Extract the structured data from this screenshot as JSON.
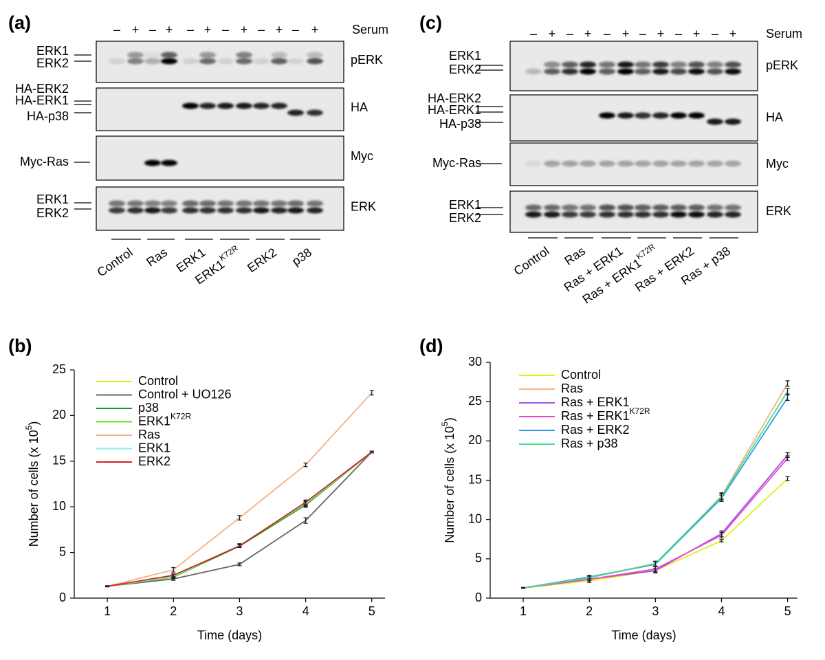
{
  "blot_a": {
    "label": "(a)",
    "serum_label": "Serum",
    "serum_signs": [
      "–",
      "+",
      "–",
      "+",
      "–",
      "+",
      "–",
      "+",
      "–",
      "+",
      "–",
      "+"
    ],
    "rows": [
      {
        "name": "pERK",
        "markers": [
          "ERK1",
          "ERK2"
        ]
      },
      {
        "name": "HA",
        "markers": [
          "HA-ERK2",
          "HA-ERK1",
          "HA-p38"
        ]
      },
      {
        "name": "Myc",
        "markers": [
          "Myc-Ras"
        ]
      },
      {
        "name": "ERK",
        "markers": [
          "ERK1",
          "ERK2"
        ]
      }
    ],
    "groups": [
      "Control",
      "Ras",
      "ERK1",
      {
        "text": "ERK1",
        "sup": "K72R"
      },
      "ERK2",
      "p38"
    ]
  },
  "blot_c": {
    "label": "(c)",
    "serum_label": "Serum",
    "serum_signs": [
      "–",
      "+",
      "–",
      "+",
      "–",
      "+",
      "–",
      "+",
      "–",
      "+",
      "–",
      "+"
    ],
    "rows": [
      {
        "name": "pERK",
        "markers": [
          "ERK1",
          "ERK2"
        ]
      },
      {
        "name": "HA",
        "markers": [
          "HA-ERK2",
          "HA-ERK1",
          "HA-p38"
        ]
      },
      {
        "name": "Myc",
        "markers": [
          "Myc-Ras"
        ]
      },
      {
        "name": "ERK",
        "markers": [
          "ERK1",
          "ERK2"
        ]
      }
    ],
    "groups": [
      "Control",
      "Ras",
      "Ras + ERK1",
      {
        "text": "Ras + ERK1",
        "sup": "K72R"
      },
      "Ras + ERK2",
      "Ras + p38"
    ]
  },
  "chart_data": [
    {
      "type": "line",
      "panel_label": "(b)",
      "xlabel": "Time (days)",
      "ylabel": [
        "Number of cells (x 10",
        "5",
        ")"
      ],
      "x": [
        1,
        2,
        3,
        4,
        5
      ],
      "xlim": [
        0.5,
        5.2
      ],
      "xticks": [
        1,
        2,
        3,
        4,
        5
      ],
      "ylim": [
        0,
        25
      ],
      "yticks": [
        0,
        5,
        10,
        15,
        20,
        25
      ],
      "series": [
        {
          "name": "Control",
          "color": "#e3ee10",
          "values": [
            1.3,
            2.3,
            5.8,
            10.2,
            16
          ],
          "errors": [
            0.05,
            0.15,
            0.15,
            0.25,
            0.1
          ]
        },
        {
          "name": "Control + UO126",
          "color": "#666666",
          "values": [
            1.3,
            2.1,
            3.7,
            8.5,
            16
          ],
          "errors": [
            0.05,
            0.15,
            0.15,
            0.3,
            0.1
          ]
        },
        {
          "name": "p38",
          "color": "#1a9a1a",
          "values": [
            1.3,
            2.3,
            5.7,
            10.2,
            16
          ],
          "errors": [
            0.05,
            0.15,
            0.15,
            0.25,
            0.1
          ]
        },
        {
          "name": "ERK1",
          "name_sup": "K72R",
          "color": "#66dd22",
          "values": [
            1.3,
            2.3,
            5.8,
            10.3,
            16
          ],
          "errors": [
            0.05,
            0.15,
            0.15,
            0.25,
            0.1
          ]
        },
        {
          "name": "Ras",
          "color": "#f4b183",
          "values": [
            1.3,
            3.1,
            8.8,
            14.6,
            22.5
          ],
          "errors": [
            0.05,
            0.25,
            0.25,
            0.2,
            0.25
          ]
        },
        {
          "name": "ERK1",
          "color": "#88eeee",
          "values": [
            1.3,
            2.4,
            5.8,
            10.4,
            16
          ],
          "errors": [
            0.05,
            0.15,
            0.15,
            0.25,
            0.1
          ]
        },
        {
          "name": "ERK2",
          "color": "#d62020",
          "values": [
            1.3,
            2.5,
            5.7,
            10.5,
            16
          ],
          "errors": [
            0.05,
            0.15,
            0.15,
            0.25,
            0.1
          ]
        }
      ]
    },
    {
      "type": "line",
      "panel_label": "(d)",
      "xlabel": "Time (days)",
      "ylabel": [
        "Number of cells (x 10",
        "5",
        ")"
      ],
      "x": [
        1,
        2,
        3,
        4,
        5
      ],
      "xlim": [
        0.5,
        5.15
      ],
      "xticks": [
        1,
        2,
        3,
        4,
        5
      ],
      "ylim": [
        0,
        30
      ],
      "yticks": [
        0,
        5,
        10,
        15,
        20,
        25,
        30
      ],
      "series": [
        {
          "name": "Control",
          "color": "#e3ee10",
          "values": [
            1.3,
            2.2,
            3.5,
            7.3,
            15.2
          ],
          "errors": [
            0.05,
            0.2,
            0.2,
            0.15,
            0.25
          ]
        },
        {
          "name": "Ras",
          "color": "#f4b183",
          "values": [
            1.3,
            2.6,
            4.3,
            13,
            27.3
          ],
          "errors": [
            0.05,
            0.2,
            0.3,
            0.4,
            0.35
          ]
        },
        {
          "name": "Ras + ERK1",
          "color": "#9b59e6",
          "values": [
            1.3,
            2.4,
            3.5,
            8.2,
            18.2
          ],
          "errors": [
            0.05,
            0.2,
            0.3,
            0.35,
            0.3
          ]
        },
        {
          "name": "Ras + ERK1",
          "name_sup": "K72R",
          "color": "#ee44cc",
          "values": [
            1.3,
            2.4,
            3.7,
            8.0,
            17.8
          ],
          "errors": [
            0.05,
            0.2,
            0.3,
            0.35,
            0.3
          ]
        },
        {
          "name": "Ras + ERK2",
          "color": "#3399ee",
          "values": [
            1.3,
            2.7,
            4.3,
            12.7,
            25.5
          ],
          "errors": [
            0.05,
            0.2,
            0.3,
            0.4,
            0.35
          ]
        },
        {
          "name": "Ras + p38",
          "color": "#44dd88",
          "values": [
            1.3,
            2.6,
            4.4,
            12.9,
            26.3
          ],
          "errors": [
            0.05,
            0.2,
            0.3,
            0.4,
            0.35
          ]
        }
      ]
    }
  ]
}
